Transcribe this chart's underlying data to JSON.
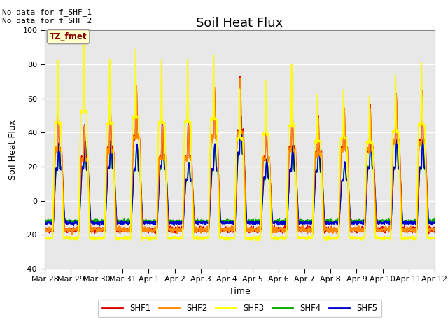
{
  "title": "Soil Heat Flux",
  "xlabel": "Time",
  "ylabel": "Soil Heat Flux",
  "ylim": [
    -40,
    100
  ],
  "yticks": [
    -40,
    -20,
    0,
    20,
    40,
    60,
    80,
    100
  ],
  "plot_bg_color": "#e8e8e8",
  "grid_color": "white",
  "legend_labels": [
    "SHF1",
    "SHF2",
    "SHF3",
    "SHF4",
    "SHF5"
  ],
  "legend_colors": [
    "#dd0000",
    "#ff8800",
    "#ffff00",
    "#00aa00",
    "#0000cc"
  ],
  "annotation_text": "No data for f_SHF_1\nNo data for f_SHF_2",
  "box_label": "TZ_fmet",
  "box_bg": "#ffffcc",
  "box_border": "#999999",
  "num_days": 15,
  "xtick_labels": [
    "Mar 28",
    "Mar 29",
    "Mar 30",
    "Mar 31",
    "Apr 1",
    "Apr 2",
    "Apr 3",
    "Apr 4",
    "Apr 5",
    "Apr 6",
    "Apr 7",
    "Apr 8",
    "Apr 9",
    "Apr 10",
    "Apr 11",
    "Apr 12"
  ],
  "title_fontsize": 13,
  "pts_per_day": 144
}
